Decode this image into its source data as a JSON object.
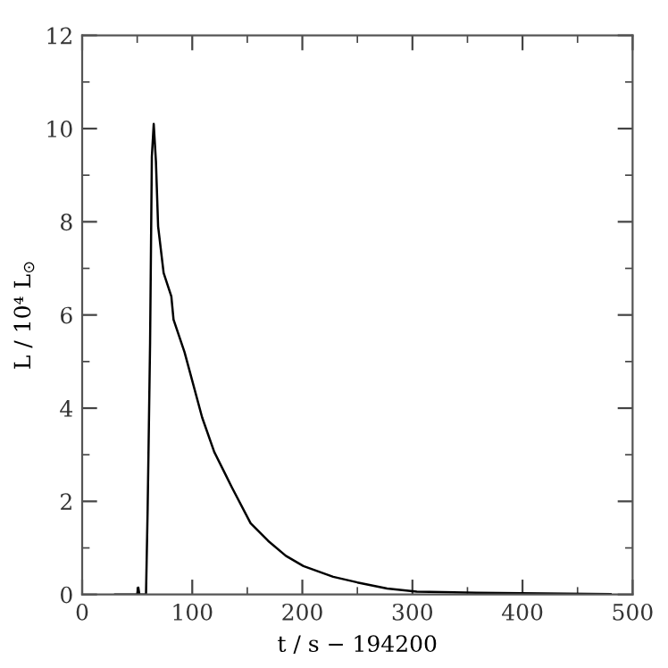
{
  "chart_data": {
    "type": "line",
    "xlabel": "t / s − 194200",
    "ylabel": "L / 10⁴ L$_{⊙}$",
    "series": [
      {
        "color": "#000000",
        "x": [
          30,
          50,
          51,
          52,
          58,
          59.5,
          60.6,
          61.7,
          63.3,
          65,
          67,
          69,
          74,
          81,
          83,
          93,
          97,
          109,
          120,
          136,
          153,
          169,
          185,
          201,
          228,
          250,
          277,
          304,
          358,
          480
        ],
        "values": [
          0,
          0,
          0.15,
          0,
          0,
          1.85,
          3.6,
          5.4,
          9.4,
          10.1,
          9.3,
          7.9,
          6.9,
          6.4,
          5.9,
          5.2,
          4.85,
          3.8,
          3.06,
          2.3,
          1.53,
          1.15,
          0.83,
          0.61,
          0.38,
          0.26,
          0.13,
          0.06,
          0.04,
          0.01
        ]
      }
    ],
    "xlim": [
      0,
      500
    ],
    "ylim": [
      0,
      12
    ],
    "xticks": [
      0,
      {
        "value": 50,
        "label": null
      },
      100,
      {
        "value": 150,
        "label": null
      },
      200,
      {
        "value": 250,
        "label": null
      },
      300,
      {
        "value": 350,
        "label": null
      },
      400,
      {
        "value": 450,
        "label": null
      },
      500
    ],
    "yticks": [
      0,
      {
        "value": 1,
        "label": null
      },
      2,
      {
        "value": 3,
        "label": null
      },
      4,
      {
        "value": 5,
        "label": null
      },
      6,
      {
        "value": 7,
        "label": null
      },
      8,
      {
        "value": 9,
        "label": null
      },
      10,
      {
        "value": 11,
        "label": null
      },
      12
    ],
    "grid": false,
    "legend": false,
    "marker": "none",
    "line_style": "solid"
  }
}
